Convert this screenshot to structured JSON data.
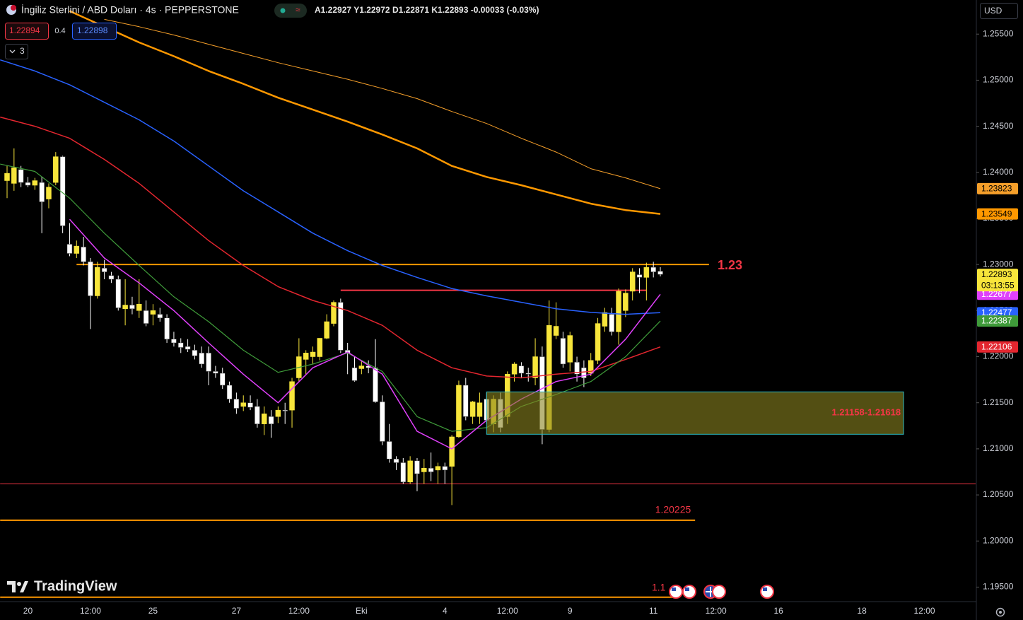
{
  "header": {
    "title": "İngiliz Sterlini / ABD Doları · 4s · PEPPERSTONE",
    "ohlc_labels": [
      "A",
      "Y",
      "D",
      "K"
    ],
    "change": "-0.00033 (-0.03%)",
    "bid": 1.22894,
    "spread": 0.4,
    "ask": 1.22898,
    "indicators": 3,
    "currency": "USD",
    "logo": "TradingView",
    "countdown": "03:13:55"
  },
  "chart_data": {
    "type": "candlestick",
    "categories": [
      null,
      null,
      null,
      "20",
      null,
      null,
      null,
      null,
      null,
      null,
      null,
      null,
      "12:00",
      null,
      null,
      null,
      null,
      null,
      null,
      null,
      null,
      "25",
      null,
      null,
      null,
      null,
      null,
      null,
      null,
      null,
      null,
      null,
      null,
      "27",
      null,
      null,
      null,
      null,
      null,
      null,
      null,
      null,
      "12:00",
      null,
      null,
      null,
      null,
      null,
      null,
      null,
      null,
      "Eki",
      null,
      null,
      null,
      null,
      null,
      null,
      null,
      null,
      null,
      null,
      null,
      "4",
      null,
      null,
      null,
      null,
      null,
      null,
      null,
      null,
      "12:00",
      null,
      null,
      null,
      null,
      null,
      null,
      null,
      null,
      "9",
      null,
      null,
      null,
      null,
      null,
      null,
      null,
      null,
      null,
      null,
      null,
      "11",
      null,
      null,
      null,
      null,
      null,
      null,
      null,
      null,
      "12:00",
      null,
      null,
      null,
      null,
      null,
      null,
      null,
      null,
      "16",
      null,
      null,
      null,
      null,
      null,
      null,
      null,
      null,
      null,
      null,
      null,
      "18",
      null,
      null,
      null,
      null,
      null,
      null,
      null,
      null,
      "12:00"
    ],
    "open": [
      1.2391,
      1.2388,
      1.2403,
      1.2389,
      1.2386,
      1.2389,
      1.2371,
      1.2389,
      1.2417,
      1.2322,
      1.2312,
      1.2319,
      1.2303,
      1.2266,
      1.2296,
      1.2288,
      1.2284,
      1.2252,
      1.2256,
      1.225,
      1.225,
      1.2246,
      1.2246,
      1.2242,
      1.2219,
      1.2215,
      1.2211,
      1.2207,
      1.2204,
      1.2204,
      1.2184,
      1.2182,
      1.2169,
      1.2154,
      1.2146,
      1.215,
      1.2146,
      1.2127,
      1.2135,
      1.2135,
      1.2142,
      1.2142,
      1.2177,
      1.2197,
      1.22,
      1.22,
      1.222,
      1.2236,
      1.2259,
      1.2207,
      1.2188,
      1.2187,
      1.219,
      1.2188,
      1.2151,
      1.2108,
      1.2089,
      1.2085,
      1.2064,
      1.2087,
      1.2075,
      1.2079,
      1.2077,
      1.2081,
      1.2081,
      1.2113,
      1.2169,
      1.2135,
      1.2135,
      1.2154,
      1.2127,
      1.2154,
      1.2135,
      1.2181,
      1.219,
      1.2182,
      1.2177,
      1.22,
      1.2121,
      1.2223,
      1.222,
      1.2194,
      1.2194,
      1.2188,
      1.2182,
      1.2196,
      1.2233,
      1.2246,
      1.2227,
      1.225,
      1.2271,
      1.2289,
      1.2286,
      1.2297,
      1.22927,
      null,
      null,
      null,
      null,
      null,
      null,
      null,
      null,
      null,
      null,
      null,
      null,
      null,
      null,
      null,
      null,
      null,
      null,
      null,
      null,
      null,
      null,
      null,
      null,
      null,
      null,
      null,
      null,
      null,
      null,
      null,
      null,
      null,
      null,
      null,
      null,
      null,
      null
    ],
    "high": [
      1.2407,
      1.2426,
      1.2407,
      1.2395,
      1.2394,
      1.2395,
      1.2388,
      1.2422,
      1.2418,
      1.2345,
      1.2326,
      1.233,
      1.2307,
      1.2303,
      1.2305,
      1.2292,
      1.2288,
      1.2284,
      1.2265,
      1.2284,
      1.2261,
      1.2257,
      1.2253,
      1.2246,
      1.2227,
      1.222,
      1.2219,
      1.2213,
      1.2211,
      1.2211,
      1.219,
      1.2188,
      1.2173,
      1.2161,
      1.2158,
      1.2158,
      1.2154,
      1.2146,
      1.2142,
      1.2146,
      1.215,
      1.2177,
      1.222,
      1.2207,
      1.2211,
      1.222,
      1.2246,
      1.2261,
      1.2263,
      1.2215,
      1.22,
      1.2196,
      1.2196,
      1.2219,
      1.2158,
      1.2127,
      1.2092,
      1.209,
      1.2092,
      1.209,
      1.2089,
      1.2096,
      1.2085,
      1.2085,
      1.2115,
      1.2174,
      1.2177,
      1.2152,
      1.2161,
      1.2161,
      1.2158,
      1.2161,
      1.2184,
      1.2194,
      1.2194,
      1.2188,
      1.222,
      1.2211,
      1.2261,
      1.2259,
      1.2227,
      1.2227,
      1.22,
      1.2196,
      1.2204,
      1.2242,
      1.2253,
      1.2253,
      1.2274,
      1.2273,
      1.2296,
      1.2296,
      1.2302,
      1.2303,
      1.22972,
      null,
      null,
      null,
      null,
      null,
      null,
      null,
      null,
      null,
      null,
      null,
      null,
      null,
      null,
      null,
      null,
      null,
      null,
      null,
      null,
      null,
      null,
      null,
      null,
      null,
      null,
      null,
      null,
      null,
      null,
      null,
      null,
      null,
      null,
      null,
      null,
      null,
      null
    ],
    "low": [
      1.2372,
      1.238,
      1.2384,
      1.2384,
      1.2381,
      1.2334,
      1.2361,
      1.2386,
      1.2334,
      1.2309,
      1.2307,
      1.2299,
      1.223,
      1.2263,
      1.2284,
      1.228,
      1.225,
      1.2234,
      1.2246,
      1.2242,
      1.2233,
      1.2234,
      1.2238,
      1.2215,
      1.2211,
      1.2204,
      1.2205,
      1.2197,
      1.2188,
      1.2169,
      1.2177,
      1.2165,
      1.215,
      1.2138,
      1.2141,
      1.2142,
      1.2123,
      1.2115,
      1.2112,
      1.2128,
      1.2127,
      1.2123,
      1.2173,
      1.2181,
      1.2192,
      1.2196,
      1.2219,
      1.2233,
      1.2204,
      1.2181,
      1.2173,
      1.2181,
      1.2182,
      1.215,
      1.2104,
      1.2085,
      1.2077,
      1.2062,
      1.2062,
      1.2054,
      1.2062,
      1.2065,
      1.2062,
      1.2062,
      1.2039,
      1.2112,
      1.2131,
      1.2127,
      1.2127,
      1.2127,
      1.2118,
      1.2118,
      1.2127,
      1.2173,
      1.2177,
      1.2173,
      1.2169,
      1.2105,
      1.2118,
      1.2219,
      1.2188,
      1.2184,
      1.2173,
      1.2167,
      1.2179,
      1.2192,
      1.2227,
      1.2223,
      1.2213,
      1.2243,
      1.2261,
      1.2269,
      1.2261,
      1.2286,
      1.22871,
      null,
      null,
      null,
      null,
      null,
      null,
      null,
      null,
      null,
      null,
      null,
      null,
      null,
      null,
      null,
      null,
      null,
      null,
      null,
      null,
      null,
      null,
      null,
      null,
      null,
      null,
      null,
      null,
      null,
      null,
      null,
      null,
      null,
      null,
      null,
      null,
      null,
      null
    ],
    "close": [
      1.2399,
      1.2405,
      1.2389,
      1.2386,
      1.2391,
      1.2368,
      1.2384,
      1.2417,
      1.2342,
      1.2312,
      1.232,
      1.2303,
      1.2266,
      1.2297,
      1.2292,
      1.2284,
      1.2253,
      1.2256,
      1.2252,
      1.2257,
      1.2236,
      1.225,
      1.2242,
      1.2219,
      1.2215,
      1.221,
      1.2208,
      1.2201,
      1.2192,
      1.2184,
      1.2182,
      1.2169,
      1.2154,
      1.2144,
      1.215,
      1.2145,
      1.2127,
      1.2138,
      1.2127,
      1.2142,
      1.2141,
      1.2173,
      1.22,
      1.2204,
      1.2205,
      1.222,
      1.2238,
      1.2259,
      1.2207,
      1.2204,
      1.2174,
      1.219,
      1.2188,
      1.2151,
      1.2108,
      1.2089,
      1.2085,
      1.2064,
      1.2087,
      1.2073,
      1.2079,
      1.2075,
      1.2081,
      1.2077,
      1.2113,
      1.2169,
      1.2135,
      1.2151,
      1.215,
      1.2131,
      1.2154,
      1.2123,
      1.2181,
      1.2192,
      1.2182,
      1.2181,
      1.22,
      1.2121,
      1.2234,
      1.2233,
      1.2192,
      1.2223,
      1.2181,
      1.2177,
      1.2196,
      1.2236,
      1.2248,
      1.2227,
      1.2271,
      1.2269,
      1.2292,
      1.2286,
      1.2297,
      1.2292,
      1.22893,
      null,
      null,
      null,
      null,
      null,
      null,
      null,
      null,
      null,
      null,
      null,
      null,
      null,
      null,
      null,
      null,
      null,
      null,
      null,
      null,
      null,
      null,
      null,
      null,
      null,
      null,
      null,
      null,
      null,
      null,
      null,
      null,
      null,
      null,
      null,
      null,
      null,
      null
    ],
    "up_color": "#f7e53b",
    "down_color": "#ffffff",
    "ylim": [
      1.1935,
      1.2587
    ],
    "yticks": [
      {
        "value": 1.255,
        "label": "1.25500"
      },
      {
        "value": 1.25,
        "label": "1.25000"
      },
      {
        "value": 1.245,
        "label": "1.24500"
      },
      {
        "value": 1.24,
        "label": "1.24000"
      },
      {
        "value": 1.235,
        "label": "1.23500"
      },
      {
        "value": 1.23,
        "label": "1.23000"
      },
      {
        "value": 1.225,
        "label": "1.22500"
      },
      {
        "value": 1.22,
        "label": "1.22000"
      },
      {
        "value": 1.215,
        "label": "1.21500"
      },
      {
        "value": 1.21,
        "label": "1.21000"
      },
      {
        "value": 1.205,
        "label": "1.20500"
      },
      {
        "value": 1.2,
        "label": "1.20000"
      },
      {
        "value": 1.195,
        "label": "1.19500"
      }
    ],
    "overlays": [
      {
        "color": "#f59f2a",
        "width": 1,
        "x": [
          14,
          19,
          24,
          29,
          34,
          39,
          44,
          49,
          54,
          59,
          64,
          69,
          74,
          79,
          84,
          89,
          94
        ],
        "values": [
          1.2566,
          1.2558,
          1.2549,
          1.2539,
          1.2529,
          1.2519,
          1.251,
          1.2501,
          1.2491,
          1.248,
          1.2466,
          1.2453,
          1.2437,
          1.2422,
          1.2404,
          1.2394,
          1.23823
        ]
      },
      {
        "color": "#ff9800",
        "width": 2.5,
        "x": [
          9,
          14,
          19,
          24,
          29,
          34,
          39,
          44,
          49,
          54,
          59,
          64,
          69,
          74,
          79,
          84,
          89,
          94
        ],
        "values": [
          1.2575,
          1.2558,
          1.2541,
          1.2526,
          1.251,
          1.2496,
          1.2481,
          1.2468,
          1.2455,
          1.2441,
          1.2426,
          1.2407,
          1.2395,
          1.2386,
          1.2376,
          1.2366,
          1.2359,
          1.23549
        ]
      },
      {
        "color": "#2962ff",
        "width": 1.5,
        "x": [
          -1,
          4,
          9,
          14,
          19,
          24,
          29,
          34,
          39,
          44,
          49,
          54,
          59,
          64,
          69,
          74,
          79,
          84,
          89,
          94
        ],
        "values": [
          1.2522,
          1.251,
          1.2495,
          1.2476,
          1.2457,
          1.2434,
          1.2407,
          1.238,
          1.2357,
          1.2334,
          1.2315,
          1.2299,
          1.2286,
          1.2274,
          1.2266,
          1.2259,
          1.2252,
          1.2248,
          1.2246,
          1.22477
        ]
      },
      {
        "color": "#e3262f",
        "width": 1.5,
        "x": [
          -1,
          4,
          9,
          14,
          19,
          24,
          29,
          34,
          39,
          44,
          49,
          54,
          59,
          64,
          69,
          74,
          79,
          84,
          89,
          94
        ],
        "values": [
          1.246,
          1.245,
          1.2437,
          1.2414,
          1.2388,
          1.2357,
          1.2326,
          1.2299,
          1.2276,
          1.2261,
          1.225,
          1.2234,
          1.2207,
          1.2188,
          1.2179,
          1.2177,
          1.2181,
          1.2184,
          1.2197,
          1.22106
        ]
      },
      {
        "color": "#3f9b3a",
        "width": 1.2,
        "x": [
          -1,
          4,
          9,
          14,
          19,
          24,
          29,
          34,
          39,
          44,
          49,
          54,
          59,
          64,
          69,
          74,
          79,
          84,
          89,
          94
        ],
        "values": [
          1.2409,
          1.2401,
          1.2372,
          1.2334,
          1.2299,
          1.2265,
          1.2238,
          1.2207,
          1.2183,
          1.2192,
          1.2204,
          1.2184,
          1.2135,
          1.2119,
          1.2123,
          1.2146,
          1.2159,
          1.2173,
          1.22,
          1.22387
        ]
      },
      {
        "color": "#e040fb",
        "width": 1.5,
        "x": [
          9,
          14,
          19,
          24,
          29,
          34,
          39,
          44,
          49,
          54,
          59,
          64,
          69,
          74,
          79,
          84,
          89,
          94
        ],
        "values": [
          1.2349,
          1.2307,
          1.228,
          1.225,
          1.2215,
          1.2181,
          1.215,
          1.2188,
          1.2205,
          1.2181,
          1.2119,
          1.21,
          1.2131,
          1.2154,
          1.2173,
          1.2181,
          1.2219,
          1.22677
        ]
      }
    ],
    "levels": [
      {
        "value": 1.23,
        "from": 10,
        "to": 101,
        "color": "#ff9800",
        "width": 2,
        "label_color": "#f23645"
      },
      {
        "value": 1.2272,
        "from": 48,
        "to": 92,
        "color": "#f23645",
        "width": 2
      },
      {
        "value": 1.2062,
        "from": -1,
        "to": 140,
        "color": "#f23645",
        "width": 1
      },
      {
        "value": 1.20225,
        "from": -1,
        "to": 99,
        "color": "#ff9800",
        "width": 2,
        "label_color": "#f23645"
      },
      {
        "value": 1.1939,
        "from": -1,
        "to": 96,
        "color": "#ff9800",
        "width": 2,
        "label": "1.1",
        "label_color": "#f23645"
      }
    ],
    "zone": {
      "low": 1.21158,
      "high": 1.21618,
      "from": 69,
      "to": 129,
      "fill": "#8a8420",
      "border": "#2ab7c0",
      "label": "1.21158-1.21618",
      "label_color": "#f23645"
    }
  }
}
